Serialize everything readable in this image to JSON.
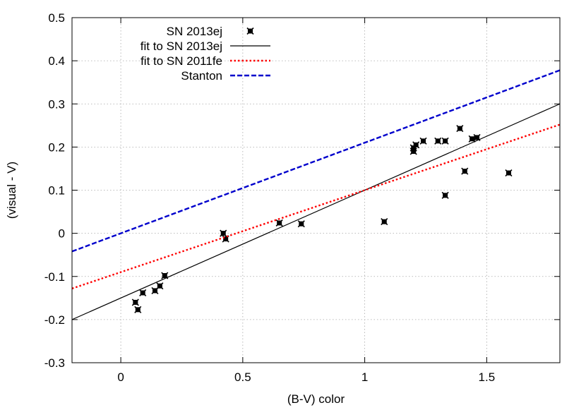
{
  "chart_data": {
    "type": "scatter",
    "xlabel": "(B-V) color",
    "ylabel": "(visual - V)",
    "xlim": [
      -0.2,
      1.8
    ],
    "ylim": [
      -0.3,
      0.5
    ],
    "xticks": [
      0,
      0.5,
      1,
      1.5
    ],
    "xtick_labels": [
      "0",
      "0.5",
      "1",
      "1.5"
    ],
    "yticks": [
      -0.3,
      -0.2,
      -0.1,
      0,
      0.1,
      0.2,
      0.3,
      0.4,
      0.5
    ],
    "ytick_labels": [
      "-0.3",
      "-0.2",
      "-0.1",
      "0",
      "0.1",
      "0.2",
      "0.3",
      "0.4",
      "0.5"
    ],
    "grid": true,
    "legend_position": "top-left",
    "series": [
      {
        "name": "SN 2013ej",
        "kind": "points",
        "marker": "x-square",
        "color": "#000000",
        "points": [
          [
            0.06,
            -0.16
          ],
          [
            0.07,
            -0.177
          ],
          [
            0.09,
            -0.138
          ],
          [
            0.14,
            -0.133
          ],
          [
            0.16,
            -0.122
          ],
          [
            0.18,
            -0.098
          ],
          [
            0.42,
            0.0
          ],
          [
            0.43,
            -0.013
          ],
          [
            0.65,
            0.024
          ],
          [
            0.74,
            0.022
          ],
          [
            1.08,
            0.027
          ],
          [
            1.2,
            0.19
          ],
          [
            1.2,
            0.198
          ],
          [
            1.21,
            0.205
          ],
          [
            1.24,
            0.214
          ],
          [
            1.3,
            0.214
          ],
          [
            1.33,
            0.214
          ],
          [
            1.33,
            0.088
          ],
          [
            1.39,
            0.243
          ],
          [
            1.41,
            0.144
          ],
          [
            1.44,
            0.219
          ],
          [
            1.46,
            0.222
          ],
          [
            1.59,
            0.14
          ]
        ]
      },
      {
        "name": "fit to SN 2013ej",
        "kind": "line",
        "style": "solid",
        "color": "#000000",
        "x": [
          -0.2,
          1.8
        ],
        "y": [
          -0.2,
          0.3
        ]
      },
      {
        "name": "fit to SN 2011fe",
        "kind": "line",
        "style": "dotted",
        "color": "#ff0000",
        "x": [
          -0.2,
          1.8
        ],
        "y": [
          -0.128,
          0.252
        ]
      },
      {
        "name": "Stanton",
        "kind": "line",
        "style": "dashed",
        "color": "#0000cc",
        "x": [
          -0.2,
          1.8
        ],
        "y": [
          -0.042,
          0.378
        ]
      }
    ]
  }
}
